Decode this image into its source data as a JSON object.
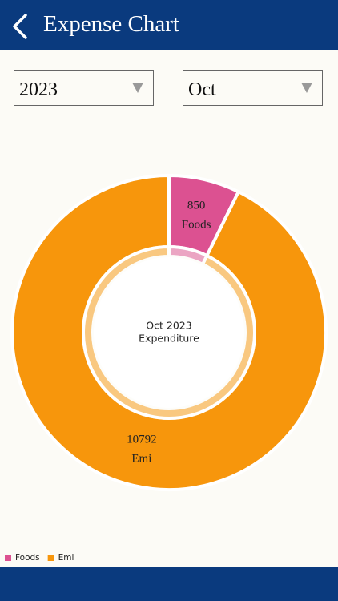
{
  "header": {
    "title": "Expense Chart"
  },
  "filters": {
    "year": "2023",
    "month": "Oct"
  },
  "chart_data": {
    "type": "donut",
    "center_text": [
      "Oct 2023",
      "Expenditure"
    ],
    "categories": [
      "Foods",
      "Emi"
    ],
    "values": [
      850,
      10792
    ],
    "colors": [
      "#dc5191",
      "#f7960c"
    ],
    "legend": "bottom-left"
  }
}
